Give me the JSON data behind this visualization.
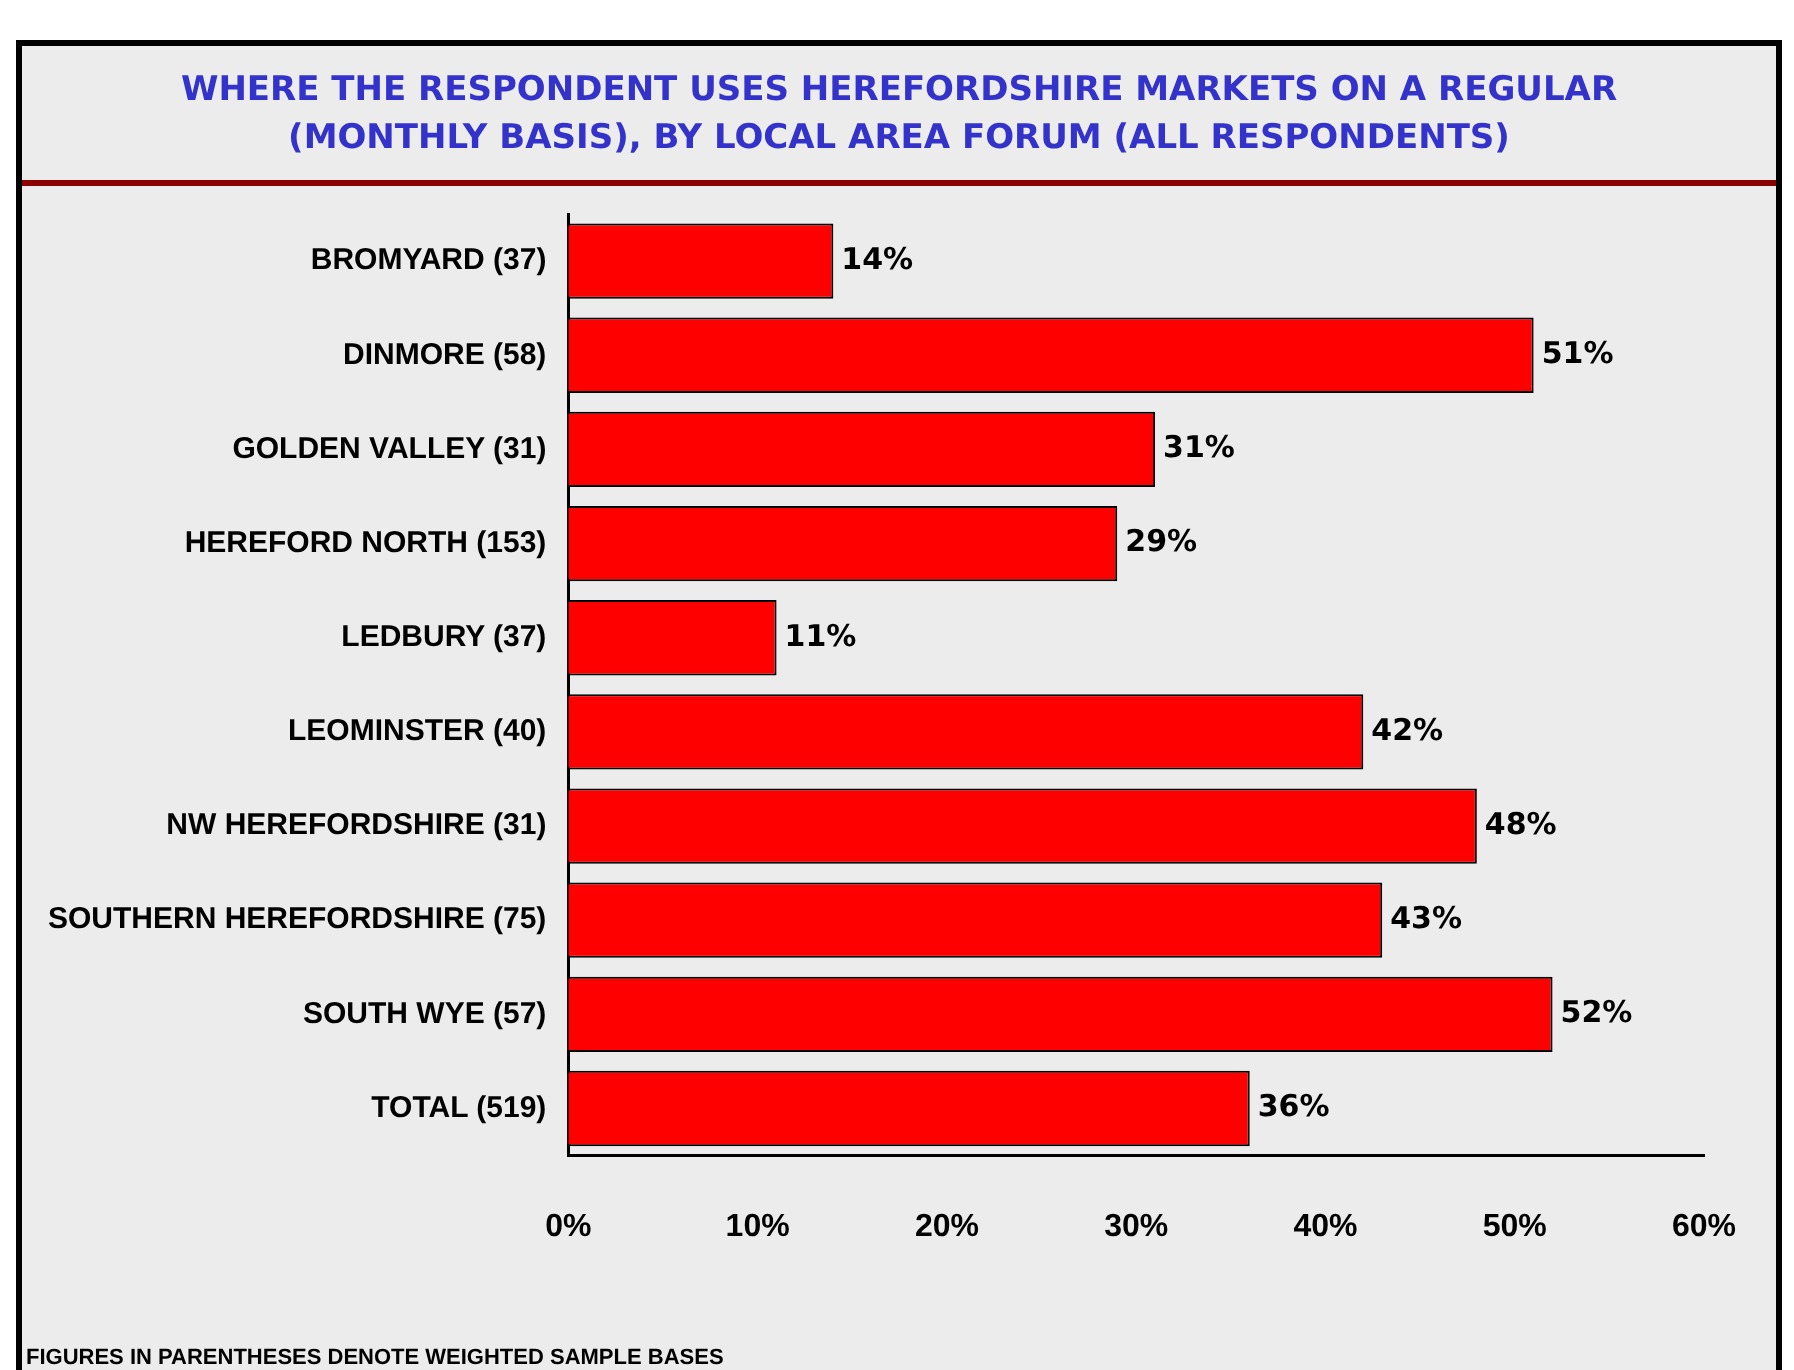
{
  "chart_data": {
    "type": "bar",
    "orientation": "horizontal",
    "title": "WHERE THE RESPONDENT USES HEREFORDSHIRE MARKETS ON A REGULAR (MONTHLY BASIS), BY LOCAL AREA FORUM (ALL RESPONDENTS)",
    "categories": [
      "BROMYARD (37)",
      "DINMORE (58)",
      "GOLDEN VALLEY (31)",
      "HEREFORD NORTH (153)",
      "LEDBURY (37)",
      "LEOMINSTER (40)",
      "NW HEREFORDSHIRE (31)",
      "SOUTHERN HEREFORDSHIRE (75)",
      "SOUTH WYE (57)",
      "TOTAL (519)"
    ],
    "values": [
      14,
      51,
      31,
      29,
      11,
      42,
      48,
      43,
      52,
      36
    ],
    "value_labels": [
      "14%",
      "51%",
      "31%",
      "29%",
      "11%",
      "42%",
      "48%",
      "43%",
      "52%",
      "36%"
    ],
    "color": "#ff0000",
    "xlim": [
      0,
      60
    ],
    "xticks": [
      {
        "value": 0,
        "label": "0%"
      },
      {
        "value": 10,
        "label": "10%"
      },
      {
        "value": 20,
        "label": "20%"
      },
      {
        "value": 30,
        "label": "30%"
      },
      {
        "value": 40,
        "label": "40%"
      },
      {
        "value": 50,
        "label": "50%"
      },
      {
        "value": 60,
        "label": "60%"
      }
    ],
    "grid": false,
    "legend": false,
    "annotations": [
      "FIGURES IN PARENTHESES DENOTE WEIGHTED SAMPLE BASES"
    ]
  }
}
